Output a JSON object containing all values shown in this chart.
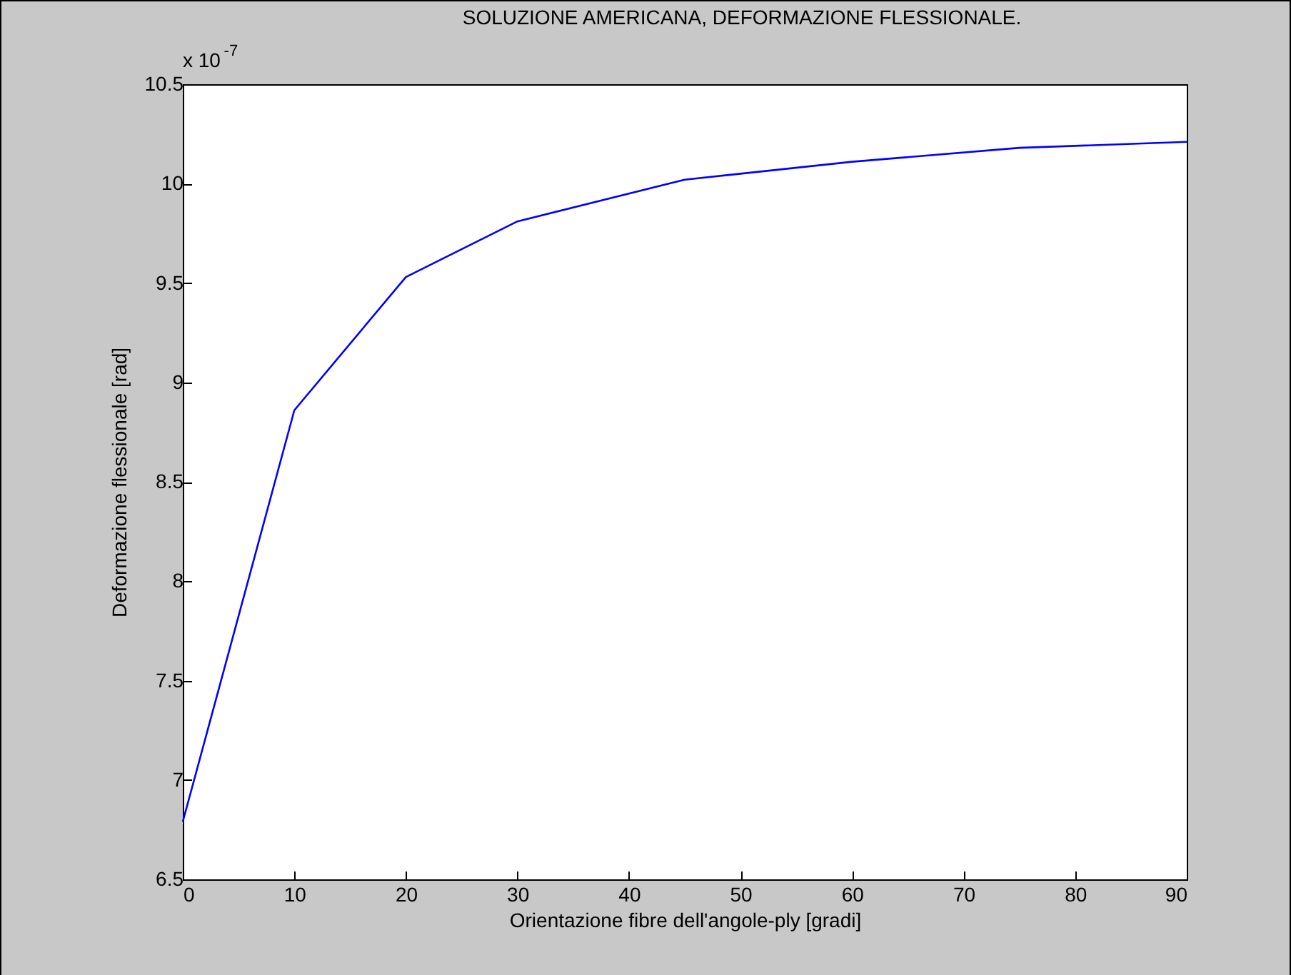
{
  "chart_data": {
    "type": "line",
    "title": "SOLUZIONE AMERICANA, DEFORMAZIONE FLESSIONALE.",
    "xlabel": "Orientazione fibre dell'angole-ply [gradi]",
    "ylabel": "Deformazione flessionale [rad]",
    "annotations": [
      "x 10$^{-7}$"
    ],
    "x": [
      0,
      10,
      20,
      30,
      45,
      60,
      75,
      90
    ],
    "series": [
      {
        "color": "#0000ff",
        "values": [
          6.79,
          8.86,
          9.53,
          9.81,
          10.02,
          10.11,
          10.18,
          10.21
        ]
      }
    ],
    "xlim": [
      0,
      90
    ],
    "xticks": [
      0,
      10,
      20,
      30,
      40,
      50,
      60,
      70,
      80,
      90
    ],
    "ylim": [
      6.5,
      10.5
    ],
    "yticks": [
      6.5,
      7,
      7.5,
      8,
      8.5,
      9,
      9.5,
      10,
      10.5
    ],
    "grid": false,
    "marker": "none",
    "line_style": "solid"
  }
}
